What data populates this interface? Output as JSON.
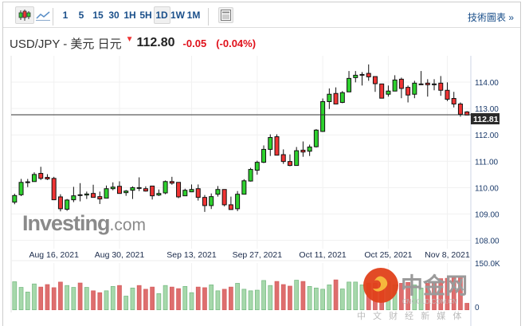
{
  "toolbar": {
    "chart_types": [
      {
        "name": "candlestick-icon",
        "selected": true
      },
      {
        "name": "line-chart-icon",
        "selected": false
      }
    ],
    "timeframes": [
      {
        "label": "1",
        "selected": false
      },
      {
        "label": "5",
        "selected": false
      },
      {
        "label": "15",
        "selected": false
      },
      {
        "label": "30",
        "selected": false
      },
      {
        "label": "1H",
        "selected": false
      },
      {
        "label": "5H",
        "selected": false
      },
      {
        "label": "1D",
        "selected": true
      },
      {
        "label": "1W",
        "selected": false
      },
      {
        "label": "1M",
        "selected": false
      }
    ],
    "layout_icon": "document-layout-icon",
    "technical_link": "技術圖表 »"
  },
  "quote": {
    "symbol": "USD/JPY - 美元 日元",
    "direction_icon": "down-arrow-icon",
    "last": "112.80",
    "change": "-0.05",
    "change_pct": "(-0.04%)",
    "change_color": "#e0101a"
  },
  "watermarks": {
    "investing": "Investing.com",
    "cngold": "中金网",
    "cngold_domain": "CNGOLD.COM.CN",
    "cngold_tagline": "中 文 财 经 新 媒 体"
  },
  "chart_data": {
    "type": "candlestick",
    "colors": {
      "up": "#2ed12e",
      "down": "#f03434",
      "vol_up": "#a6d8ab",
      "vol_down": "#de6e6e"
    },
    "ylim": [
      107.5,
      115.0
    ],
    "y_ticks": [
      "114.00",
      "113.00",
      "112.00",
      "111.00",
      "110.00",
      "109.00",
      "108.00"
    ],
    "x_ticks": [
      "Aug 16, 2021",
      "Aug 30, 2021",
      "Sep 13, 2021",
      "Sep 27, 2021",
      "Oct 11, 2021",
      "Oct 25, 2021",
      "Nov 8, 2021"
    ],
    "x_tick_index": [
      6,
      16,
      27,
      37,
      47,
      57,
      66
    ],
    "current_price_label": "112.81",
    "current_price": 112.81,
    "volume_axis": {
      "max_label": "150.0K",
      "max": 150,
      "zero_label": "0",
      "unit": "K"
    },
    "ohlc": [
      [
        109.45,
        109.77,
        109.37,
        109.7
      ],
      [
        109.73,
        110.33,
        109.68,
        110.2
      ],
      [
        110.2,
        110.33,
        110.02,
        110.22
      ],
      [
        110.23,
        110.58,
        110.23,
        110.5
      ],
      [
        110.54,
        110.79,
        110.29,
        110.35
      ],
      [
        110.39,
        110.51,
        110.29,
        110.33
      ],
      [
        110.35,
        110.41,
        109.53,
        109.54
      ],
      [
        109.65,
        109.75,
        109.1,
        109.2
      ],
      [
        109.18,
        109.57,
        109.12,
        109.53
      ],
      [
        109.54,
        110.03,
        109.45,
        109.69
      ],
      [
        109.73,
        110.17,
        109.48,
        109.71
      ],
      [
        109.72,
        109.85,
        109.57,
        109.76
      ],
      [
        109.78,
        110.11,
        109.63,
        109.63
      ],
      [
        109.66,
        109.85,
        109.38,
        109.57
      ],
      [
        109.6,
        110.08,
        109.6,
        109.96
      ],
      [
        109.96,
        110.2,
        109.9,
        110.02
      ],
      [
        110.05,
        110.24,
        109.78,
        109.78
      ],
      [
        109.81,
        109.91,
        109.69,
        109.87
      ],
      [
        109.9,
        110.05,
        109.57,
        110.0
      ],
      [
        110.0,
        110.39,
        109.87,
        109.98
      ],
      [
        109.96,
        110.05,
        109.85,
        109.87
      ],
      [
        110.06,
        110.06,
        109.55,
        109.69
      ],
      [
        109.72,
        109.93,
        109.68,
        109.78
      ],
      [
        109.8,
        110.27,
        109.75,
        110.23
      ],
      [
        110.23,
        110.41,
        110.11,
        110.17
      ],
      [
        110.2,
        110.2,
        109.6,
        109.65
      ],
      [
        109.69,
        109.96,
        109.69,
        109.9
      ],
      [
        109.84,
        110.12,
        109.84,
        109.93
      ],
      [
        109.96,
        110.12,
        109.51,
        109.63
      ],
      [
        109.63,
        109.72,
        109.08,
        109.32
      ],
      [
        109.32,
        109.78,
        109.19,
        109.66
      ],
      [
        109.75,
        110.06,
        109.66,
        109.93
      ],
      [
        109.93,
        109.93,
        109.29,
        109.35
      ],
      [
        109.35,
        109.66,
        109.17,
        109.17
      ],
      [
        109.2,
        109.87,
        109.11,
        109.75
      ],
      [
        109.75,
        110.32,
        109.75,
        110.26
      ],
      [
        110.25,
        110.75,
        110.23,
        110.69
      ],
      [
        110.66,
        111.02,
        110.49,
        110.96
      ],
      [
        110.96,
        111.6,
        110.93,
        111.45
      ],
      [
        111.45,
        112.02,
        111.2,
        111.9
      ],
      [
        111.93,
        112.02,
        111.23,
        111.23
      ],
      [
        111.25,
        111.45,
        110.9,
        110.99
      ],
      [
        110.99,
        111.26,
        110.81,
        110.84
      ],
      [
        110.84,
        111.54,
        110.84,
        111.4
      ],
      [
        111.42,
        111.75,
        111.17,
        111.35
      ],
      [
        111.38,
        111.63,
        111.2,
        111.54
      ],
      [
        111.55,
        112.22,
        111.52,
        112.18
      ],
      [
        112.13,
        113.38,
        112.11,
        113.26
      ],
      [
        113.26,
        113.76,
        112.98,
        113.54
      ],
      [
        113.57,
        113.8,
        113.17,
        113.17
      ],
      [
        113.23,
        113.66,
        113.2,
        113.6
      ],
      [
        113.63,
        114.42,
        113.63,
        114.14
      ],
      [
        114.17,
        114.42,
        113.99,
        114.26
      ],
      [
        114.27,
        114.38,
        113.87,
        114.29
      ],
      [
        114.33,
        114.67,
        114.05,
        114.2
      ],
      [
        114.21,
        114.21,
        113.63,
        113.94
      ],
      [
        113.93,
        113.93,
        113.39,
        113.39
      ],
      [
        113.54,
        113.87,
        113.45,
        113.66
      ],
      [
        113.66,
        114.26,
        113.66,
        114.08
      ],
      [
        114.11,
        114.17,
        113.39,
        113.76
      ],
      [
        113.8,
        113.87,
        113.23,
        113.51
      ],
      [
        113.54,
        114.05,
        113.39,
        113.96
      ],
      [
        113.92,
        114.42,
        113.91,
        113.93
      ],
      [
        113.96,
        114.11,
        113.45,
        113.9
      ],
      [
        113.93,
        114.11,
        113.69,
        113.9
      ],
      [
        113.96,
        114.23,
        113.48,
        113.69
      ],
      [
        113.69,
        113.99,
        113.28,
        113.35
      ],
      [
        113.38,
        113.63,
        113.04,
        113.17
      ],
      [
        113.17,
        113.23,
        112.69,
        112.78
      ],
      [
        112.87,
        112.9,
        112.75,
        112.75
      ]
    ],
    "volume": [
      90,
      72,
      57,
      83,
      73,
      81,
      71,
      89,
      78,
      72,
      86,
      72,
      61,
      55,
      61,
      75,
      78,
      44,
      70,
      78,
      66,
      73,
      52,
      78,
      73,
      68,
      75,
      55,
      73,
      71,
      80,
      61,
      66,
      73,
      85,
      66,
      61,
      63,
      94,
      78,
      91,
      81,
      76,
      95,
      91,
      75,
      70,
      66,
      80,
      96,
      67,
      89,
      89,
      80,
      86,
      86,
      91,
      91,
      80,
      85,
      88,
      80,
      70,
      85,
      90,
      100,
      101,
      103,
      105,
      21
    ]
  }
}
